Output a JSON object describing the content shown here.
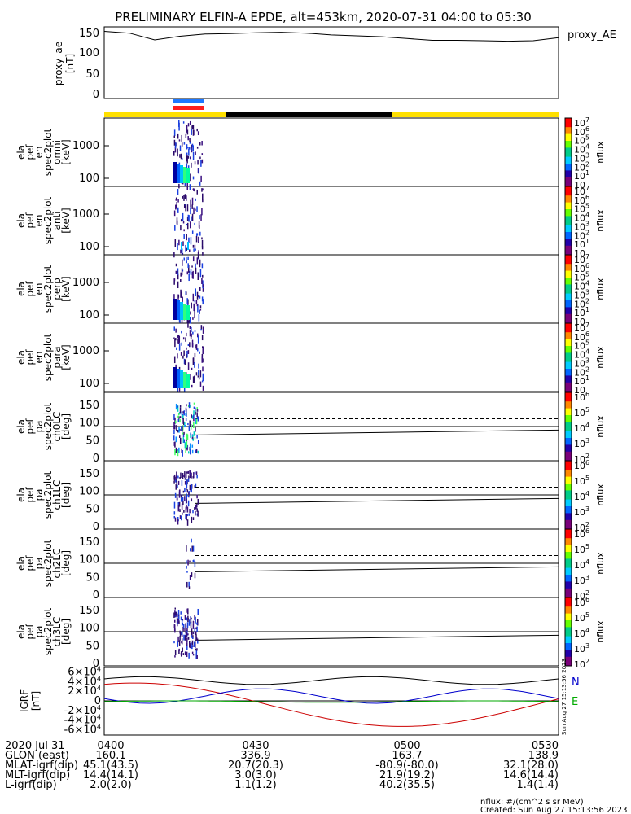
{
  "title": "PRELIMINARY ELFIN-A EPDE, alt=453km, 2020-07-31 04:00 to 05:30",
  "proxy_ae": {
    "ylabel_lines": [
      "proxy_ae",
      "[nT]"
    ],
    "legend": "proxy_AE",
    "yticks": [
      "150",
      "100",
      "50",
      "0"
    ],
    "ylim": [
      0,
      160
    ]
  },
  "spectra_panels": [
    {
      "ylabel_lines": [
        "ela",
        "pef",
        "en",
        "spec2plot",
        "omni",
        "[keV]"
      ],
      "yticks": [
        "1000",
        "100"
      ],
      "unit": "nflux"
    },
    {
      "ylabel_lines": [
        "ela",
        "pef",
        "en",
        "spec2plot",
        "anti",
        "[keV]"
      ],
      "yticks": [
        "1000",
        "100"
      ],
      "unit": "nflux"
    },
    {
      "ylabel_lines": [
        "ela",
        "pef",
        "en",
        "spec2plot",
        "perp",
        "[keV]"
      ],
      "yticks": [
        "1000",
        "100"
      ],
      "unit": "nflux"
    },
    {
      "ylabel_lines": [
        "ela",
        "pef",
        "en",
        "spec2plot",
        "para",
        "[keV]"
      ],
      "yticks": [
        "1000",
        "100"
      ],
      "unit": "nflux"
    }
  ],
  "pitch_panels": [
    {
      "ylabel_lines": [
        "ela",
        "pef",
        "pa",
        "spec2plot",
        "ch0LC",
        "[deg]"
      ],
      "yticks": [
        "150",
        "100",
        "50",
        "0"
      ],
      "unit": "nflux"
    },
    {
      "ylabel_lines": [
        "ela",
        "pef",
        "pa",
        "spec2plot",
        "ch1LC",
        "[deg]"
      ],
      "yticks": [
        "150",
        "100",
        "50",
        "0"
      ],
      "unit": "nflux"
    },
    {
      "ylabel_lines": [
        "ela",
        "pef",
        "pa",
        "spec2plot",
        "ch2LC",
        "[deg]"
      ],
      "yticks": [
        "150",
        "100",
        "50",
        "0"
      ],
      "unit": "nflux"
    },
    {
      "ylabel_lines": [
        "ela",
        "pef",
        "pa",
        "spec2plot",
        "ch3LC",
        "[deg]"
      ],
      "yticks": [
        "150",
        "100",
        "50",
        "0"
      ],
      "unit": "nflux"
    }
  ],
  "igrf": {
    "ylabel_lines": [
      "IGRF",
      "[nT]"
    ],
    "yticks_mantissa": [
      "6",
      "4",
      "2",
      "0",
      "-2",
      "-4",
      "-6"
    ],
    "ytick_base": "×10",
    "ytick_exp": "4",
    "legend": [
      "N",
      "E"
    ],
    "side_stamp": "Sun Aug 27 15:13:56 2023"
  },
  "colorbars": [
    {
      "labels": [
        "10",
        "10",
        "10",
        "10",
        "10",
        "10",
        "10",
        "10",
        "10"
      ],
      "exps": [
        "7",
        "6",
        "5",
        "4",
        "3",
        "2",
        "1",
        "0",
        ""
      ],
      "unit": "nflux"
    }
  ],
  "footer": {
    "rows": [
      {
        "label": "2020 Jul 31",
        "values": [
          "0400",
          "0430",
          "0500",
          "0530"
        ]
      },
      {
        "label": "GLON (east)",
        "values": [
          "160.1",
          "336.9",
          "163.7",
          "138.9"
        ]
      },
      {
        "label": "MLAT-igrf(dip)",
        "values": [
          "45.1(43.5)",
          "20.7(20.3)",
          "-80.9(-80.0)",
          "32.1(28.0)"
        ]
      },
      {
        "label": "MLT-igrf(dip)",
        "values": [
          "14.4(14.1)",
          "3.0(3.0)",
          "21.9(19.2)",
          "14.6(14.4)"
        ]
      },
      {
        "label": "L-igrf(dip)",
        "values": [
          "2.0(2.0)",
          "1.1(1.2)",
          "40.2(35.5)",
          "1.4(1.4)"
        ]
      }
    ],
    "note_unit": "nflux: #/(cm^2 s sr MeV)",
    "note_created": "Created: Sun Aug 27 15:13:56 2023"
  },
  "colors": {
    "sunlight_bar": "#ffe000",
    "eclipse_bar": "#000000",
    "science_blue": "#1e78ff",
    "science_red": "#ff1e1e",
    "igrf_black": "#000000",
    "igrf_red": "#cc0000",
    "igrf_blue": "#0000cc",
    "igrf_green": "#00aa00"
  },
  "chart_data": {
    "type": "line",
    "title": "PRELIMINARY ELFIN-A EPDE, alt=453km, 2020-07-31 04:00 to 05:30",
    "x_ticks": [
      "0400",
      "0430",
      "0500",
      "0530"
    ],
    "proxy_AE": {
      "x_minutes": [
        0,
        5,
        10,
        15,
        20,
        25,
        30,
        35,
        40,
        45,
        50,
        55,
        60,
        65,
        70,
        75,
        80,
        85,
        90
      ],
      "values": [
        150,
        146,
        131,
        139,
        144,
        145,
        147,
        148,
        146,
        142,
        140,
        138,
        134,
        130,
        130,
        129,
        128,
        129,
        136
      ]
    },
    "igrf": {
      "x_minutes": [
        0,
        10,
        20,
        30,
        40,
        50,
        60,
        70,
        80,
        90
      ],
      "series": [
        {
          "name": "N",
          "values": [
            37000,
            47000,
            38000,
            19000,
            15000,
            36000,
            53000,
            43000,
            22000,
            32000
          ]
        },
        {
          "name": "E",
          "values": [
            -1000,
            500,
            1500,
            1000,
            -500,
            0,
            1500,
            500,
            1000,
            2000
          ]
        }
      ]
    }
  }
}
